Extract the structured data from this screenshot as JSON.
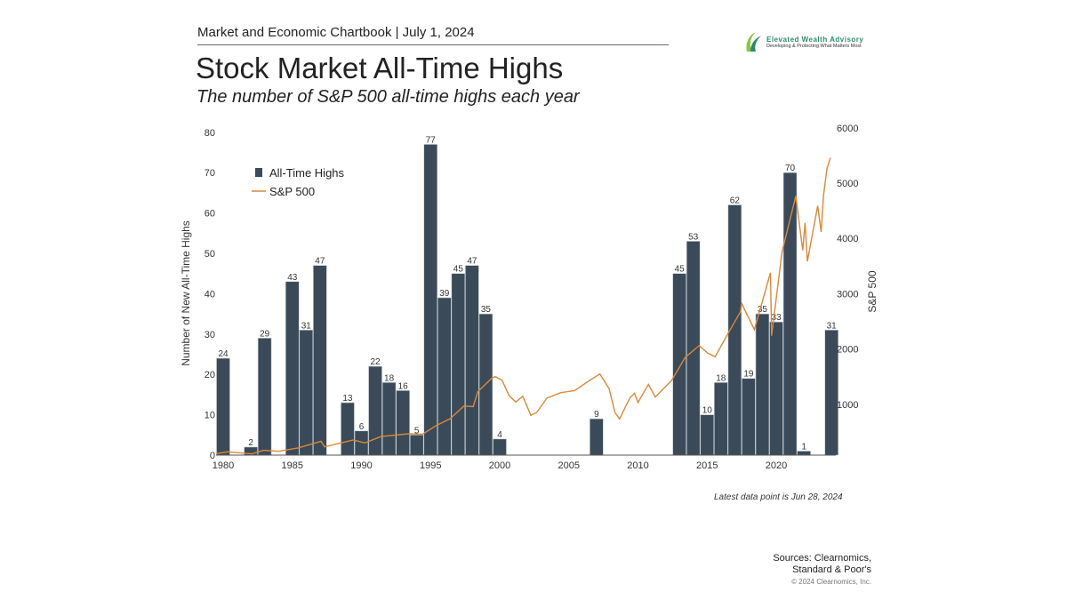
{
  "header": {
    "chartbook": "Market and Economic Chartbook | July 1, 2024",
    "title": "Stock Market All-Time Highs",
    "subtitle": "The number of S&P 500 all-time highs each year"
  },
  "logo": {
    "name": "Elevated Wealth Advisory",
    "tagline": "Developing & Protecting What Matters Most",
    "color": "#2e8b6a"
  },
  "footer": {
    "note": "Latest data point is Jun 28, 2024",
    "sources_line1": "Sources: Clearnomics,",
    "sources_line2": "Standard & Poor's",
    "copyright": "© 2024 Clearnomics, Inc."
  },
  "chart_data": {
    "type": "bar+line",
    "ylabel": "Number of New All-Time Highs",
    "y2label": "S&P 500",
    "ylim": [
      0,
      80
    ],
    "y2lim": [
      0,
      6000
    ],
    "xlim": [
      1980,
      2024
    ],
    "xticks": [
      "1980",
      "1985",
      "1990",
      "1995",
      "2000",
      "2005",
      "2010",
      "2015",
      "2020"
    ],
    "yticks": [
      "0",
      "10",
      "20",
      "30",
      "40",
      "50",
      "60",
      "70",
      "80"
    ],
    "y2ticks": [
      "1000",
      "2000",
      "3000",
      "4000",
      "5000",
      "6000"
    ],
    "legend": {
      "position": "top-left",
      "entries": [
        "All-Time Highs",
        "S&P 500"
      ]
    },
    "colors": {
      "bars": "#3a4a58",
      "line": "#d9893a"
    },
    "grid": false,
    "bars": {
      "name": "All-Time Highs",
      "years": [
        1980,
        1981,
        1982,
        1983,
        1984,
        1985,
        1986,
        1987,
        1988,
        1989,
        1990,
        1991,
        1992,
        1993,
        1994,
        1995,
        1996,
        1997,
        1998,
        1999,
        2000,
        2001,
        2002,
        2003,
        2004,
        2005,
        2006,
        2007,
        2008,
        2009,
        2010,
        2011,
        2012,
        2013,
        2014,
        2015,
        2016,
        2017,
        2018,
        2019,
        2020,
        2021,
        2022,
        2023,
        2024
      ],
      "values": [
        24,
        0,
        2,
        29,
        0,
        43,
        31,
        47,
        0,
        13,
        6,
        22,
        18,
        16,
        5,
        77,
        39,
        45,
        47,
        35,
        4,
        0,
        0,
        0,
        0,
        0,
        0,
        9,
        0,
        0,
        0,
        0,
        0,
        45,
        53,
        10,
        18,
        62,
        19,
        35,
        33,
        70,
        1,
        0,
        31
      ]
    },
    "line": {
      "name": "S&P 500",
      "dates": [
        "1980-01",
        "1980-11",
        "1982-08",
        "1983-06",
        "1984-07",
        "1985-12",
        "1987-08",
        "1987-11",
        "1989-12",
        "1990-10",
        "1991-12",
        "1993-12",
        "1994-12",
        "1995-12",
        "1996-12",
        "1997-12",
        "1998-08",
        "1998-12",
        "1999-12",
        "2000-03",
        "2000-09",
        "2001-03",
        "2001-09",
        "2002-03",
        "2002-10",
        "2003-03",
        "2003-12",
        "2004-12",
        "2005-12",
        "2006-12",
        "2007-10",
        "2008-06",
        "2008-11",
        "2009-03",
        "2009-12",
        "2010-04",
        "2010-07",
        "2011-04",
        "2011-10",
        "2012-12",
        "2013-12",
        "2014-12",
        "2015-08",
        "2016-02",
        "2016-12",
        "2017-12",
        "2018-01",
        "2018-12",
        "2019-12",
        "2020-02",
        "2020-03",
        "2020-12",
        "2021-12",
        "2022-06",
        "2022-08",
        "2022-10",
        "2023-07",
        "2023-10",
        "2023-12",
        "2024-03",
        "2024-06"
      ],
      "values": [
        108,
        140,
        103,
        168,
        150,
        211,
        330,
        230,
        353,
        300,
        417,
        466,
        459,
        615,
        740,
        970,
        957,
        1229,
        1469,
        1500,
        1436,
        1160,
        1040,
        1147,
        800,
        850,
        1111,
        1211,
        1248,
        1418,
        1549,
        1280,
        850,
        735,
        1115,
        1200,
        1030,
        1360,
        1130,
        1426,
        1848,
        2059,
        1920,
        1860,
        2238,
        2673,
        2823,
        2350,
        3230,
        3380,
        2240,
        3756,
        4766,
        3785,
        4280,
        3585,
        4588,
        4117,
        4770,
        5254,
        5460
      ]
    }
  }
}
